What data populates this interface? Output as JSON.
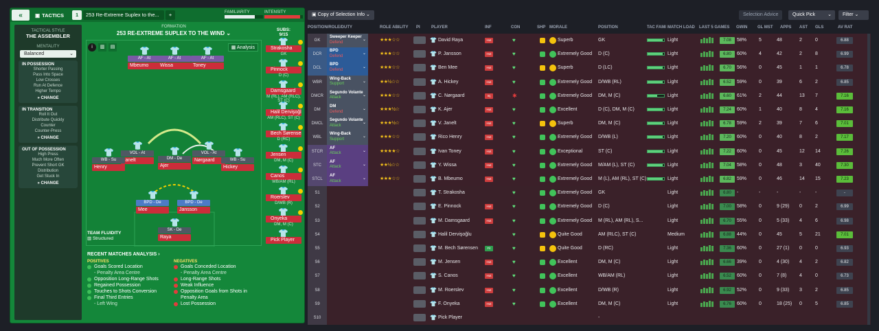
{
  "tactics": {
    "back": "«",
    "label": "TACTICS",
    "number": "1",
    "name": "253 Re-Extreme Suplex to the...",
    "familiarity": "FAMILIARITY",
    "intensity": "INTENSITY",
    "fam_level": 0.78,
    "int_level": 0.92
  },
  "side": {
    "style_label": "TACTICAL STYLE",
    "style": "THE ASSEMBLER",
    "mentality_label": "MENTALITY",
    "mentality": "Balanced",
    "in_poss": {
      "title": "IN POSSESSION",
      "items": [
        "Shorter Passing",
        "Pass Into Space",
        "Low Crosses",
        "Run At Defence",
        "Higher Tempo"
      ],
      "change": "CHANGE"
    },
    "in_trans": {
      "title": "IN TRANSITION",
      "items": [
        "Roll It Out",
        "Distribute Quickly",
        "Counter",
        "Counter-Press"
      ],
      "change": "CHANGE"
    },
    "out_poss": {
      "title": "OUT OF POSSESSION",
      "items": [
        "High Press",
        "Much More Often",
        "Prevent Short GK",
        "Distribution",
        "Get Stuck In"
      ],
      "change": "CHANGE"
    }
  },
  "formation": {
    "label": "FORMATION",
    "name": "253 RE-EXTREME SUPLEX TO THE WIND",
    "analysis": "Analysis",
    "fluidity_label": "TEAM FLUIDITY",
    "fluidity": "Structured",
    "players": [
      {
        "role": "AF - At",
        "name": "Mbeumo",
        "c": "purple"
      },
      {
        "role": "AF - At",
        "name": "Wissa",
        "c": "purple"
      },
      {
        "role": "AF - At",
        "name": "Toney",
        "c": "purple"
      },
      {
        "role": "VOL - At",
        "name": "Janelt",
        "c": ""
      },
      {
        "role": "DM - De",
        "name": "Ajer",
        "c": ""
      },
      {
        "role": "VOL - At",
        "name": "Nørgaard",
        "c": ""
      },
      {
        "role": "WB - Su",
        "name": "Henry",
        "c": ""
      },
      {
        "role": "WB - Su",
        "name": "Hickey",
        "c": ""
      },
      {
        "role": "BPD - De",
        "name": "Mee",
        "c": "blue"
      },
      {
        "role": "BPD - De",
        "name": "Jansson",
        "c": "blue"
      },
      {
        "role": "SK - De",
        "name": "Raya",
        "c": ""
      }
    ]
  },
  "subs": {
    "label": "SUBS:",
    "count": "9/15",
    "list": [
      {
        "name": "Strakosha",
        "pos": "GK"
      },
      {
        "name": "Pinnock",
        "pos": "D (C)"
      },
      {
        "name": "Damsgaard",
        "pos": "M (RL), AM (RLC), ST (C)"
      },
      {
        "name": "Halil Dervişoğlu",
        "pos": "AM (RLC), ST (C)"
      },
      {
        "name": "Bech Sørensen",
        "pos": "D (RC)"
      },
      {
        "name": "Jensen",
        "pos": "DM, M (C)"
      },
      {
        "name": "Canos",
        "pos": "WB/AM (RL)"
      },
      {
        "name": "Roerslev",
        "pos": "D/WB (R)"
      },
      {
        "name": "Onyeka",
        "pos": "DM, M (C)"
      },
      {
        "name": "Pick Player",
        "pos": ""
      }
    ]
  },
  "analysis": {
    "title": "RECENT MATCHES ANALYSIS ›",
    "pos_label": "POSITIVES",
    "neg_label": "NEGATIVES",
    "positives": [
      [
        "Goals Scored Location",
        ""
      ],
      [
        "- Penalty Area Centre",
        "sub"
      ],
      [
        "Opposition Long-Range Shots",
        ""
      ],
      [
        "Regained Possession",
        ""
      ],
      [
        "Touches to Shots Conversion",
        ""
      ],
      [
        "Final Third Entries",
        ""
      ],
      [
        "- Left Wing",
        "sub"
      ]
    ],
    "negatives": [
      [
        "Goals Conceded Location",
        ""
      ],
      [
        "- Penalty Area Centre",
        "sub"
      ],
      [
        "Long-Range Shots",
        ""
      ],
      [
        "Weak Influence",
        ""
      ],
      [
        "Opposition Goals from Shots in",
        ""
      ],
      [
        "Penalty Area",
        "cont"
      ],
      [
        "Lost Possession",
        ""
      ]
    ]
  },
  "topbar": {
    "copy": "Copy of Selection Info",
    "advice": "Selection Advice",
    "quick": "Quick Pick",
    "filter": "Filter"
  },
  "columns": [
    "POSITION/ROLE/DUTY",
    "ROLE ABILITY",
    "PI",
    "PLAYER",
    "INF",
    "CON",
    "SHP",
    "MORALE",
    "POSITION",
    "TAC FAMI",
    "MATCH LOAD",
    "LAST 5 GAMES",
    "GWIN",
    "GL MST",
    "APPS",
    "AST",
    "GLS",
    "AV RAT"
  ],
  "rows": [
    {
      "pos": "GK",
      "role": "Sweeper Keeper",
      "duty": "Defend",
      "dc": "d",
      "c": "grey",
      "stars": "★★★☆☆",
      "player": "David Raya",
      "inf": "Hot",
      "mor": "Superb",
      "mc": "#f4c20d",
      "posn": "GK",
      "tf": 0.9,
      "load": "Light",
      "rat": "7.08",
      "gwin": "58%",
      "glm": "5",
      "apps": "48",
      "ast": "2",
      "gls": "0",
      "av": "6.88"
    },
    {
      "pos": "DCR",
      "role": "BPD",
      "duty": "Defend",
      "dc": "d",
      "c": "blue",
      "stars": "★★★☆☆",
      "player": "P. Jansson",
      "inf": "Hot",
      "mor": "Extremely Good",
      "mc": "#41c35a",
      "posn": "D (C)",
      "tf": 0.9,
      "load": "Light",
      "rat": "6.80",
      "gwin": "60%",
      "glm": "4",
      "apps": "42",
      "ast": "2",
      "gls": "8",
      "av": "6.99"
    },
    {
      "pos": "DCL",
      "role": "BPD",
      "duty": "Defend",
      "dc": "d",
      "c": "blue",
      "stars": "★★★☆☆",
      "player": "Ben Mee",
      "inf": "Hot",
      "mor": "Superb",
      "mc": "#f4c20d",
      "posn": "D (LC)",
      "tf": 0.9,
      "load": "Light",
      "rat": "6.70",
      "gwin": "56%",
      "glm": "0",
      "apps": "45",
      "ast": "1",
      "gls": "1",
      "av": "6.78"
    },
    {
      "pos": "WBR",
      "role": "Wing-Back",
      "duty": "Support",
      "dc": "s",
      "c": "grey",
      "stars": "★★½☆☆",
      "player": "A. Hickey",
      "inf": "Hot",
      "mor": "Extremely Good",
      "mc": "#41c35a",
      "posn": "D/WB (RL)",
      "tf": 0.9,
      "load": "Light",
      "rat": "6.52",
      "gwin": "59%",
      "glm": "0",
      "apps": "39",
      "ast": "6",
      "gls": "2",
      "av": "6.85"
    },
    {
      "pos": "DMCR",
      "role": "Segundo Volante",
      "duty": "Attack",
      "dc": "a",
      "c": "grey",
      "stars": "★★★☆☆",
      "player": "C. Nørgaard",
      "inf": "Inj",
      "mor": "Extremely Good",
      "mc": "#41c35a",
      "posn": "DM, M (C)",
      "tf": 0.6,
      "load": "Light",
      "rat": "6.60",
      "gwin": "61%",
      "glm": "2",
      "apps": "44",
      "ast": "13",
      "gls": "7",
      "av": "7.16"
    },
    {
      "pos": "DM",
      "role": "DM",
      "duty": "Defend",
      "dc": "d",
      "c": "grey",
      "stars": "★★★½☆",
      "player": "K. Ajer",
      "inf": "Hot",
      "mor": "Excellent",
      "mc": "#41c35a",
      "posn": "D (C), DM, M (C)",
      "tf": 0.9,
      "load": "Light",
      "rat": "7.24",
      "gwin": "60%",
      "glm": "1",
      "apps": "40",
      "ast": "8",
      "gls": "4",
      "av": "7.16"
    },
    {
      "pos": "DMCL",
      "role": "Segundo Volante",
      "duty": "Attack",
      "dc": "a",
      "c": "grey",
      "stars": "★★★½☆",
      "player": "V. Janelt",
      "inf": "Hot",
      "mor": "Superb",
      "mc": "#f4c20d",
      "posn": "DM, M (C)",
      "tf": 0.9,
      "load": "Light",
      "rat": "6.78",
      "gwin": "59%",
      "glm": "2",
      "apps": "39",
      "ast": "7",
      "gls": "6",
      "av": "7.01"
    },
    {
      "pos": "WBL",
      "role": "Wing-Back",
      "duty": "Support",
      "dc": "s",
      "c": "grey",
      "stars": "★★★☆☆",
      "player": "Rico Henry",
      "inf": "Hot",
      "mor": "Extremely Good",
      "mc": "#41c35a",
      "posn": "D/WB (L)",
      "tf": 0.9,
      "load": "Light",
      "rat": "7.20",
      "gwin": "60%",
      "glm": "0",
      "apps": "40",
      "ast": "8",
      "gls": "2",
      "av": "7.17"
    },
    {
      "pos": "STCR",
      "role": "AF",
      "duty": "Attack",
      "dc": "a",
      "c": "purple",
      "stars": "★★★★☆",
      "player": "Ivan Toney",
      "inf": "Hot",
      "mor": "Exceptional",
      "mc": "#41c35a",
      "posn": "ST (C)",
      "tf": 0.9,
      "load": "Light",
      "rat": "7.22",
      "gwin": "60%",
      "glm": "0",
      "apps": "45",
      "ast": "12",
      "gls": "14",
      "av": "7.26"
    },
    {
      "pos": "STC",
      "role": "AF",
      "duty": "Attack",
      "dc": "a",
      "c": "purple",
      "stars": "★★½☆☆",
      "player": "Y. Wissa",
      "inf": "Hot",
      "mor": "Extremely Good",
      "mc": "#41c35a",
      "posn": "M/AM (L), ST (C)",
      "tf": 0.9,
      "load": "Light",
      "rat": "7.04",
      "gwin": "58%",
      "glm": "0",
      "apps": "48",
      "ast": "3",
      "gls": "40",
      "av": "7.30"
    },
    {
      "pos": "STCL",
      "role": "AF",
      "duty": "Attack",
      "dc": "a",
      "c": "purple",
      "stars": "★★★☆☆",
      "player": "B. Mbeumo",
      "inf": "Hot",
      "mor": "Extremely Good",
      "mc": "#41c35a",
      "posn": "M (L), AM (RL), ST (C)",
      "tf": 0.9,
      "load": "Light",
      "rat": "6.82",
      "gwin": "59%",
      "glm": "0",
      "apps": "46",
      "ast": "14",
      "gls": "15",
      "av": "7.23"
    },
    {
      "pos": "S1",
      "role": "",
      "sub": 1,
      "stars": "",
      "player": "T. Strakosha",
      "inf": "",
      "mor": "Extremely Good",
      "mc": "#41c35a",
      "posn": "GK",
      "tf": 0,
      "load": "Light",
      "rat": "6.80",
      "gwin": "-",
      "glm": "-",
      "apps": "-",
      "ast": "-",
      "gls": "-",
      "av": "-"
    },
    {
      "pos": "S2",
      "sub": 1,
      "player": "E. Pinnock",
      "inf": "Hot",
      "mor": "Extremely Good",
      "mc": "#41c35a",
      "posn": "D (C)",
      "tf": 0,
      "load": "Light",
      "rat": "7.00",
      "gwin": "58%",
      "glm": "0",
      "apps": "9 (29)",
      "ast": "0",
      "gls": "2",
      "av": "6.99"
    },
    {
      "pos": "S3",
      "sub": 1,
      "player": "M. Damsgaard",
      "inf": "Hot",
      "mor": "Extremely Good",
      "mc": "#41c35a",
      "posn": "M (RL), AM (RL), S...",
      "tf": 0,
      "load": "Light",
      "rat": "6.70",
      "gwin": "55%",
      "glm": "0",
      "apps": "5 (33)",
      "ast": "4",
      "gls": "6",
      "av": "6.98"
    },
    {
      "pos": "S4",
      "sub": 1,
      "player": "Halil Dervişoğlu",
      "inf": "",
      "mor": "Quite Good",
      "mc": "#f4c20d",
      "posn": "AM (RLC), ST (C)",
      "tf": 0,
      "load": "Medium",
      "rat": "6.88",
      "gwin": "44%",
      "glm": "0",
      "apps": "45",
      "ast": "5",
      "gls": "21",
      "av": "7.01"
    },
    {
      "pos": "S5",
      "sub": 1,
      "player": "M. Bech Sørensen",
      "inf": "Fit",
      "mor": "Quite Good",
      "mc": "#f4c20d",
      "posn": "D (RC)",
      "tf": 0,
      "load": "Light",
      "rat": "7.36",
      "gwin": "60%",
      "glm": "0",
      "apps": "27 (1)",
      "ast": "0",
      "gls": "0",
      "av": "6.93"
    },
    {
      "pos": "S6",
      "sub": 1,
      "player": "M. Jensen",
      "inf": "Hot",
      "mor": "Excellent",
      "mc": "#41c35a",
      "posn": "DM, M (C)",
      "tf": 0,
      "load": "Light",
      "rat": "6.66",
      "gwin": "39%",
      "glm": "0",
      "apps": "4 (30)",
      "ast": "4",
      "gls": "2",
      "av": "6.82"
    },
    {
      "pos": "S7",
      "sub": 1,
      "player": "S. Canos",
      "inf": "Hot",
      "mor": "Excellent",
      "mc": "#41c35a",
      "posn": "WB/AM (RL)",
      "tf": 0,
      "load": "Light",
      "rat": "6.52",
      "gwin": "60%",
      "glm": "0",
      "apps": "7 (8)",
      "ast": "4",
      "gls": "0",
      "av": "6.73"
    },
    {
      "pos": "S8",
      "sub": 1,
      "player": "M. Roerslev",
      "inf": "Hot",
      "mor": "Excellent",
      "mc": "#41c35a",
      "posn": "D/WB (R)",
      "tf": 0,
      "load": "Light",
      "rat": "6.92",
      "gwin": "52%",
      "glm": "0",
      "apps": "9 (33)",
      "ast": "3",
      "gls": "2",
      "av": "6.85"
    },
    {
      "pos": "S9",
      "sub": 1,
      "player": "F. Onyeka",
      "inf": "Hot",
      "mor": "Excellent",
      "mc": "#41c35a",
      "posn": "DM, M (C)",
      "tf": 0,
      "load": "Light",
      "rat": "6.76",
      "gwin": "60%",
      "glm": "0",
      "apps": "18 (25)",
      "ast": "0",
      "gls": "5",
      "av": "6.85"
    },
    {
      "pos": "S10",
      "sub": 1,
      "player": "Pick Player",
      "inf": "",
      "mor": "-",
      "mc": "",
      "posn": "-",
      "tf": 0,
      "load": "",
      "rat": "",
      "gwin": "",
      "glm": "",
      "apps": "",
      "ast": "",
      "gls": "",
      "av": ""
    }
  ]
}
